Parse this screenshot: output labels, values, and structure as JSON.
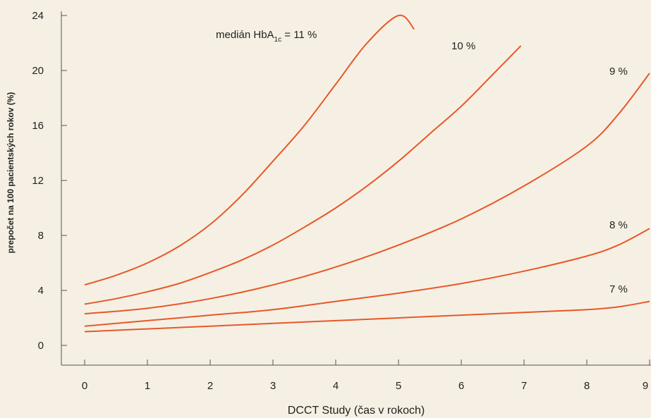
{
  "chart_data": {
    "type": "line",
    "title": "",
    "xlabel": "DCCT Study (čas v rokoch)",
    "ylabel": "prepočet na 100 pacientských rokov (%)",
    "xlim": [
      0,
      9
    ],
    "ylim": [
      0,
      24
    ],
    "x_ticks": [
      "0",
      "1",
      "2",
      "3",
      "4",
      "5",
      "6",
      "7",
      "8",
      "9"
    ],
    "y_ticks": [
      "0",
      "4",
      "8",
      "12",
      "16",
      "20",
      "24"
    ],
    "grid": false,
    "line_color": "#e8572a",
    "series": [
      {
        "label_prefix": "medián HbA",
        "label_sub": "1c",
        "label_suffix": " = 11 %",
        "x": [
          0,
          0.5,
          1,
          1.5,
          2,
          2.5,
          3,
          3.5,
          4,
          4.5,
          5,
          5.25
        ],
        "y": [
          4.4,
          5.1,
          6.0,
          7.2,
          8.8,
          10.9,
          13.4,
          16.0,
          19.0,
          22.0,
          24.0,
          23.0
        ]
      },
      {
        "name": "10 %",
        "x": [
          0,
          0.5,
          1,
          1.5,
          2,
          2.5,
          3,
          3.5,
          4,
          4.5,
          5,
          5.5,
          6,
          6.5,
          6.95
        ],
        "y": [
          3.0,
          3.4,
          3.9,
          4.5,
          5.3,
          6.2,
          7.3,
          8.6,
          10.0,
          11.6,
          13.4,
          15.4,
          17.4,
          19.7,
          21.8
        ]
      },
      {
        "name": "9 %",
        "x": [
          0,
          1,
          2,
          3,
          4,
          5,
          6,
          7,
          8,
          8.5,
          9
        ],
        "y": [
          2.3,
          2.7,
          3.4,
          4.4,
          5.7,
          7.3,
          9.2,
          11.6,
          14.5,
          16.8,
          19.8
        ]
      },
      {
        "name": "8 %",
        "x": [
          0,
          1,
          2,
          3,
          4,
          5,
          6,
          7,
          8,
          8.5,
          9
        ],
        "y": [
          1.4,
          1.8,
          2.2,
          2.6,
          3.2,
          3.8,
          4.5,
          5.4,
          6.5,
          7.3,
          8.5
        ]
      },
      {
        "name": "7 %",
        "x": [
          0,
          1,
          2,
          3,
          4,
          5,
          6,
          7,
          8,
          8.5,
          9
        ],
        "y": [
          1.0,
          1.2,
          1.4,
          1.6,
          1.8,
          2.0,
          2.2,
          2.4,
          2.6,
          2.8,
          3.2
        ]
      }
    ]
  }
}
